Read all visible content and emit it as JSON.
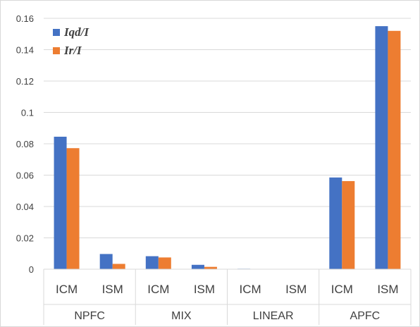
{
  "chart_data": {
    "type": "bar",
    "title": "",
    "xlabel": "",
    "ylabel": "",
    "ylim": [
      0,
      0.16
    ],
    "yticks": [
      "0",
      "0.02",
      "0.04",
      "0.06",
      "0.08",
      "0.1",
      "0.12",
      "0.14",
      "0.16"
    ],
    "ytick_values": [
      0,
      0.02,
      0.04,
      0.06,
      0.08,
      0.1,
      0.12,
      0.14,
      0.16
    ],
    "grid": "horizontal",
    "legend_position": "top-left",
    "groups": [
      {
        "name": "NPFC",
        "categories": [
          "ICM",
          "ISM"
        ]
      },
      {
        "name": "MIX",
        "categories": [
          "ICM",
          "ISM"
        ]
      },
      {
        "name": "LINEAR",
        "categories": [
          "ICM",
          "ISM"
        ]
      },
      {
        "name": "APFC",
        "categories": [
          "ICM",
          "ISM"
        ]
      }
    ],
    "series": [
      {
        "name": "Iqd/I",
        "color": "#4472c4",
        "values": [
          0.0845,
          0.0097,
          0.0083,
          0.0028,
          0.0003,
          0,
          0.0585,
          0.155
        ]
      },
      {
        "name": "Ir/I",
        "color": "#ed7d31",
        "values": [
          0.0772,
          0.0034,
          0.0075,
          0.0015,
          0.0002,
          0,
          0.0562,
          0.152
        ]
      }
    ]
  }
}
